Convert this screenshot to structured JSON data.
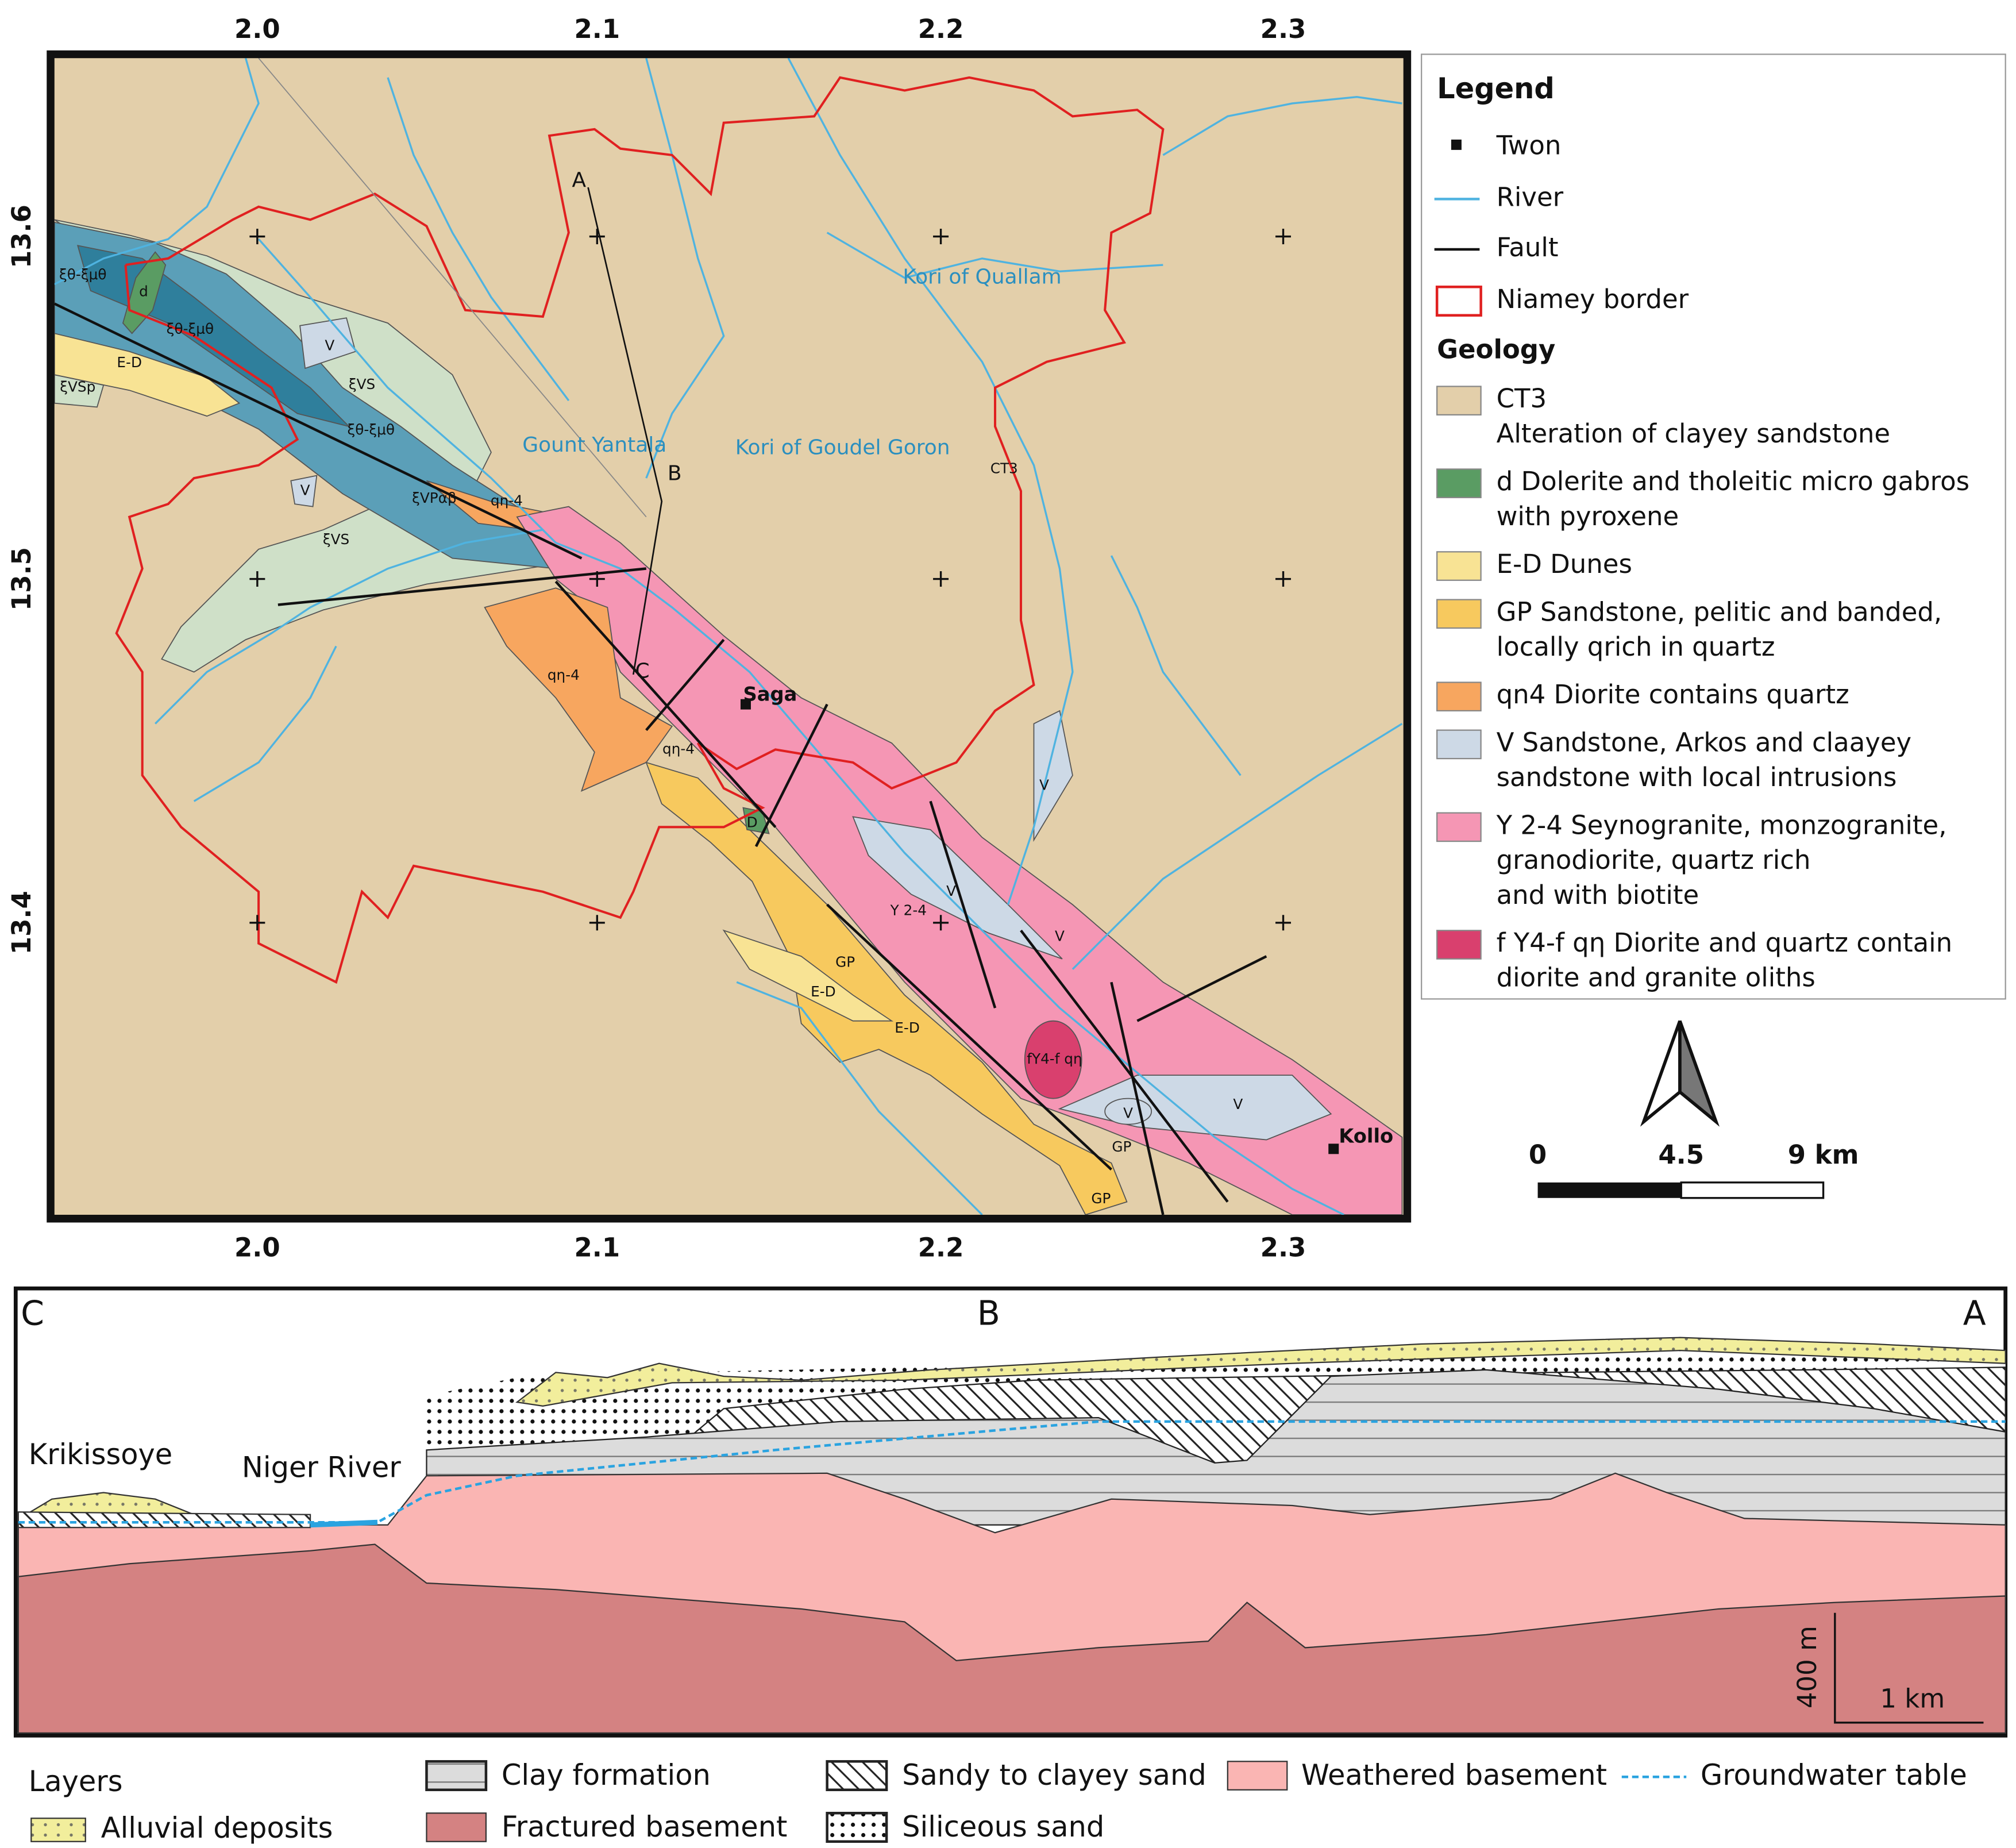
{
  "map": {
    "x_ticks": [
      "2.0",
      "2.1",
      "2.2",
      "2.3"
    ],
    "y_ticks": [
      "13.6",
      "13.5",
      "13.4"
    ],
    "labels": [
      "A",
      "B",
      "C",
      "Gount Yantala",
      "Kori of Goudel Goron",
      "Kori of Quallam",
      "CT3",
      "Saga",
      "Kollo",
      "ξθ-ξμθ",
      "ξθ-ξμθ",
      "ξθ-ξμθ",
      "d",
      "E-D",
      "ξVSp",
      "ξVS",
      "ξVS",
      "V",
      "V",
      "ξVPαβ",
      "qη-4",
      "qη-4",
      "qη-4",
      "D",
      "Υ 2-4",
      "GP",
      "E-D",
      "E-D",
      "fΥ4-f qη",
      "V",
      "V",
      "V",
      "V",
      "V",
      "GP",
      "GP"
    ]
  },
  "legend": {
    "title": "Legend",
    "symbols": [
      "Twon",
      "River",
      "Fault",
      "Niamey border"
    ],
    "geology_title": "Geology",
    "geology": [
      [
        "CT3",
        "Alteration of clayey sandstone"
      ],
      [
        "d Dolerite and tholeitic micro gabros",
        "with pyroxene"
      ],
      [
        "E-D Dunes"
      ],
      [
        "GP Sandstone, pelitic and banded,",
        "locally qrich in quartz"
      ],
      [
        "qn4 Diorite contains quartz"
      ],
      [
        "V Sandstone, Arkos and claayey",
        "sandstone with local intrusions"
      ],
      [
        "Y 2-4 Seynogranite, monzogranite,",
        "granodiorite, quartz rich",
        "and with biotite"
      ],
      [
        "f Υ4-f qη Diorite and quartz contain",
        " diorite and granite oliths"
      ]
    ]
  },
  "scale_bar": [
    "0",
    "4.5",
    "9 km"
  ],
  "section": {
    "ends": [
      "C",
      "B",
      "A"
    ],
    "places": [
      "Krikissoye",
      "Niger River"
    ],
    "vertical_scale": "400 m",
    "horizontal_scale": "1 km"
  },
  "layers": {
    "title": "Layers",
    "items": [
      "Alluvial deposits",
      "Clay formation",
      "Fractured basement",
      "Sandy to clayey sand",
      "Siliceous sand",
      "Weathered basement",
      "Groundwater table"
    ]
  }
}
